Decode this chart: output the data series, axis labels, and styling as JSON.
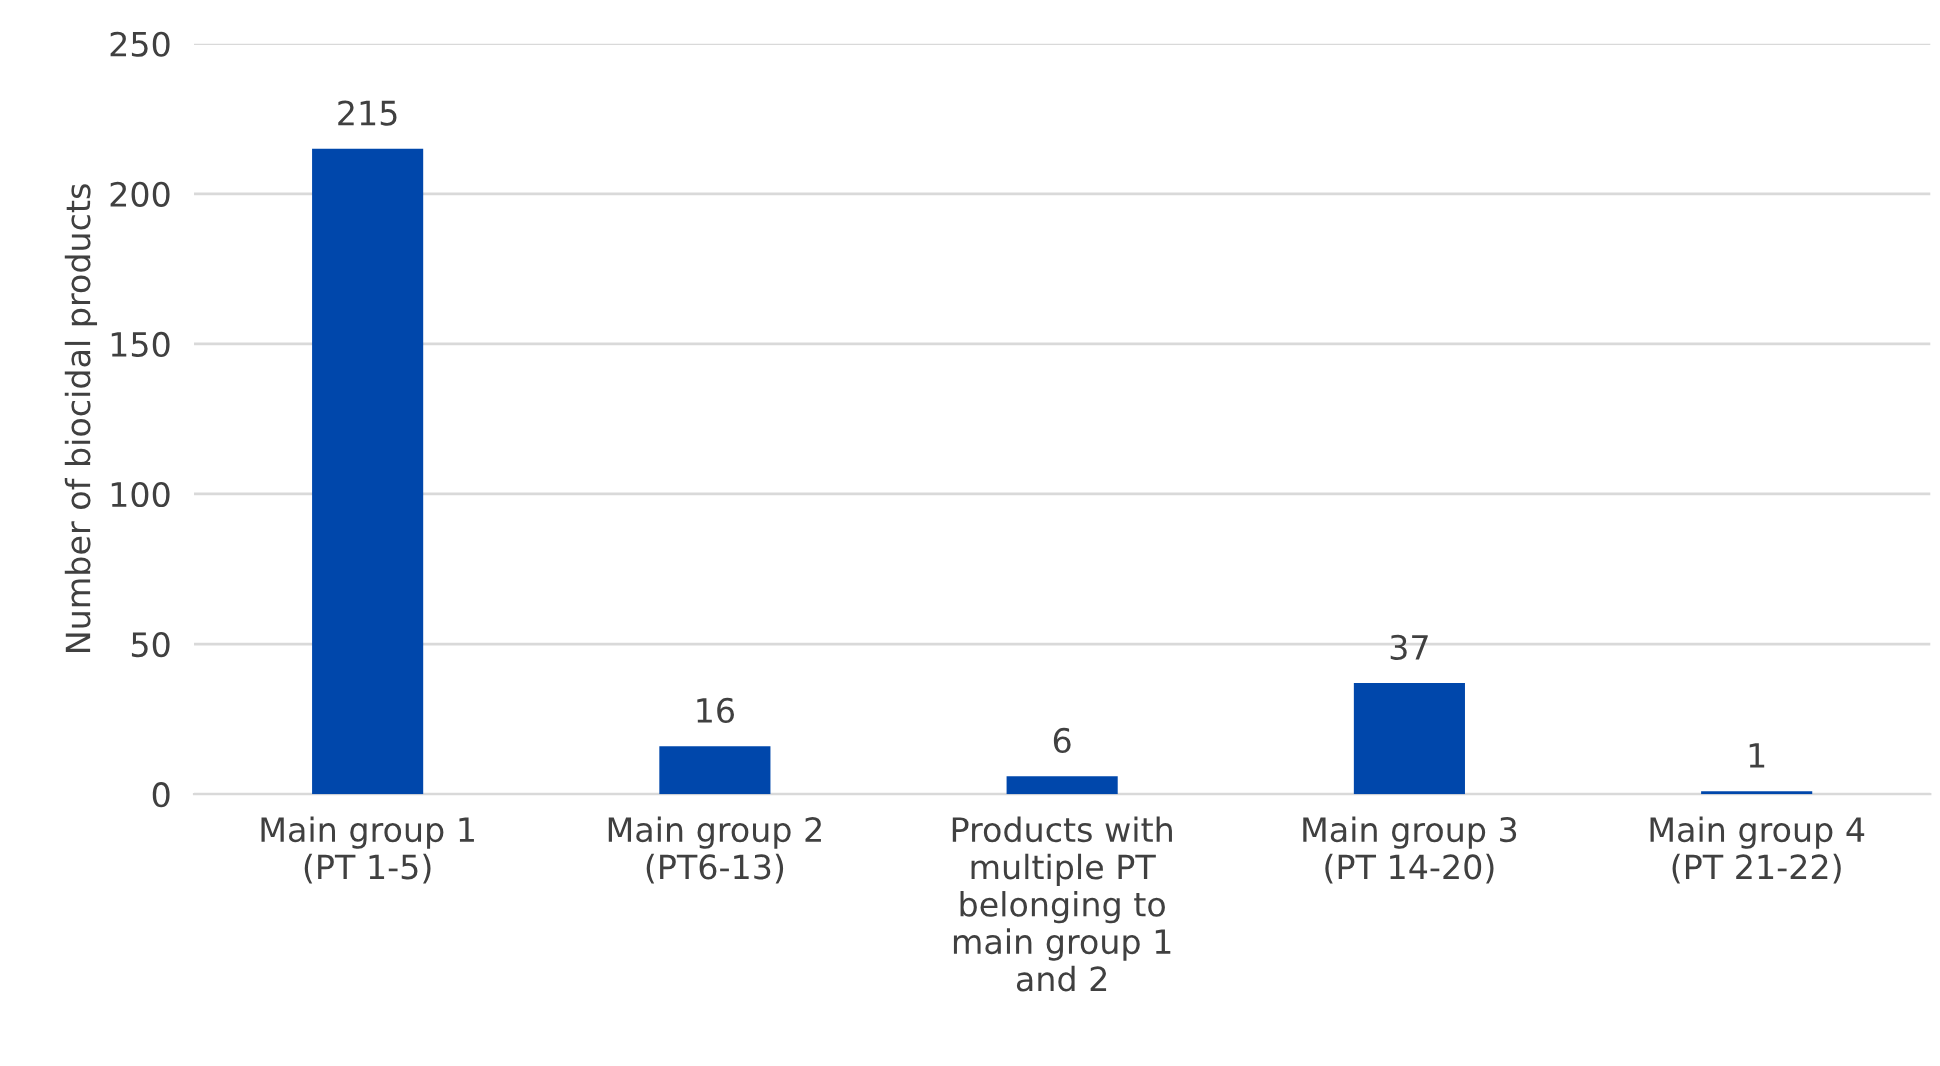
{
  "chart_data": {
    "type": "bar",
    "ylabel": "Number of biocidal products",
    "categories": [
      "Main group 1\n(PT 1-5)",
      "Main group 2\n(PT6-13)",
      "Products with\nmultiple PT\nbelonging to\nmain group 1\nand 2",
      "Main group 3\n(PT 14-20)",
      "Main group 4\n(PT 21-22)"
    ],
    "values": [
      215,
      16,
      6,
      37,
      1
    ],
    "color": "#0047ab",
    "ylim": [
      0,
      250
    ],
    "yticks": [
      0,
      50,
      100,
      150,
      200,
      250
    ],
    "grid": "y",
    "data_labels": true,
    "legend": false
  }
}
